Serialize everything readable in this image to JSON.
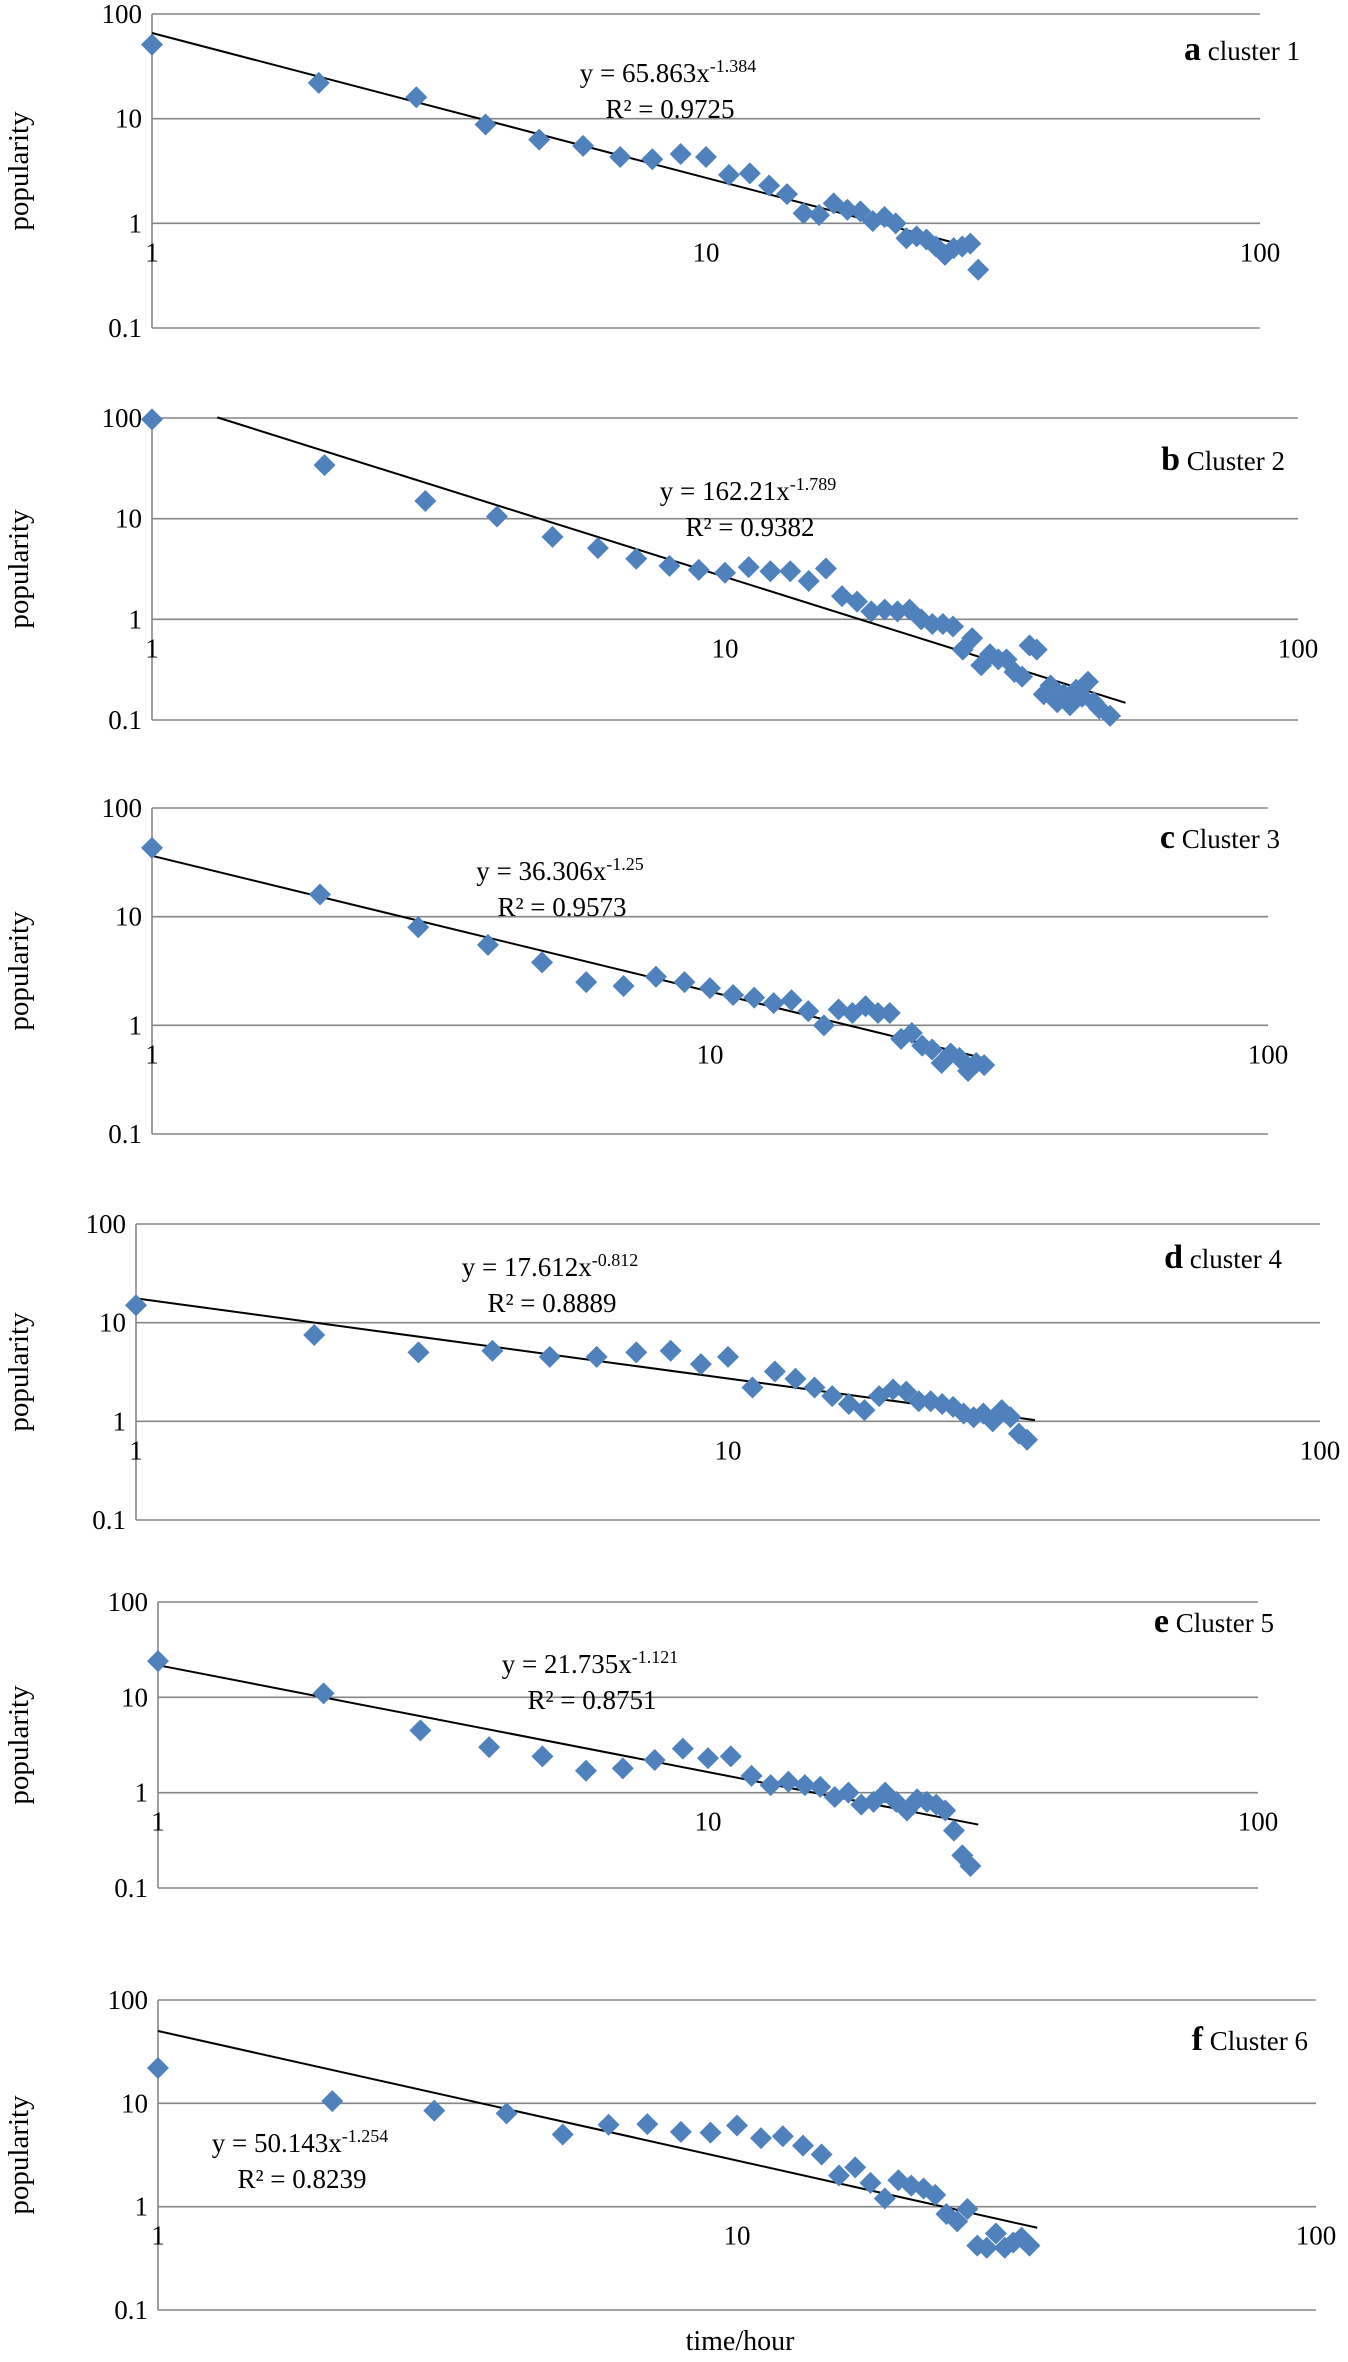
{
  "shared_x_label": "time/hour",
  "colors": {
    "marker": "#4f81bd",
    "gridline": "#868686",
    "trendline": "#000000",
    "axis": "#868686"
  },
  "chart_data": [
    {
      "type": "scatter",
      "panel_letter": "a",
      "panel_name": "cluster 1",
      "ylabel": "popularity",
      "x_scale": "log",
      "y_scale": "log",
      "xlim": [
        1,
        100
      ],
      "ylim": [
        0.1,
        100
      ],
      "x_ticks": [
        "1",
        "10",
        "100"
      ],
      "y_ticks": [
        "0.1",
        "1",
        "10",
        "100"
      ],
      "gridlines": "horizontal",
      "trendline": {
        "a": 65.863,
        "b": -1.384,
        "x_range": [
          1,
          30
        ]
      },
      "equation": {
        "prefix": "y = 65.863x",
        "exponent": "-1.384",
        "r2": "R² = 0.9725"
      },
      "points": [
        [
          1,
          51
        ],
        [
          2,
          22
        ],
        [
          3,
          16
        ],
        [
          4,
          8.8
        ],
        [
          5,
          6.3
        ],
        [
          6,
          5.5
        ],
        [
          7,
          4.3
        ],
        [
          8,
          4.1
        ],
        [
          9,
          4.6
        ],
        [
          10,
          4.3
        ],
        [
          11,
          2.9
        ],
        [
          12,
          3.0
        ],
        [
          13,
          2.3
        ],
        [
          14,
          1.9
        ],
        [
          15,
          1.25
        ],
        [
          16,
          1.2
        ],
        [
          17,
          1.55
        ],
        [
          18,
          1.35
        ],
        [
          19,
          1.3
        ],
        [
          20,
          1.05
        ],
        [
          21,
          1.15
        ],
        [
          22,
          1.0
        ],
        [
          23,
          0.72
        ],
        [
          24,
          0.75
        ],
        [
          25,
          0.7
        ],
        [
          26,
          0.6
        ],
        [
          27,
          0.5
        ],
        [
          28,
          0.58
        ],
        [
          29,
          0.6
        ],
        [
          30,
          0.64
        ],
        [
          31,
          0.36
        ]
      ]
    },
    {
      "type": "scatter",
      "panel_letter": "b",
      "panel_name": "Cluster 2",
      "ylabel": "popularity",
      "x_scale": "log",
      "y_scale": "log",
      "xlim": [
        1,
        100
      ],
      "ylim": [
        0.1,
        100
      ],
      "x_ticks": [
        "1",
        "10",
        "100"
      ],
      "y_ticks": [
        "0.1",
        "1",
        "10",
        "100"
      ],
      "gridlines": "horizontal",
      "trendline": {
        "a": 162.21,
        "b": -1.789,
        "x_range": [
          1.3,
          50
        ]
      },
      "equation": {
        "prefix": "y = 162.21x",
        "exponent": "-1.789",
        "r2": "R² = 0.9382"
      },
      "points": [
        [
          1,
          97
        ],
        [
          2,
          34
        ],
        [
          3,
          15
        ],
        [
          4,
          10.5
        ],
        [
          5,
          6.6
        ],
        [
          6,
          5.1
        ],
        [
          7,
          4.0
        ],
        [
          8,
          3.4
        ],
        [
          9,
          3.1
        ],
        [
          10,
          2.9
        ],
        [
          11,
          3.3
        ],
        [
          12,
          3.0
        ],
        [
          13,
          3.0
        ],
        [
          14,
          2.4
        ],
        [
          15,
          3.2
        ],
        [
          16,
          1.7
        ],
        [
          17,
          1.5
        ],
        [
          18,
          1.2
        ],
        [
          19,
          1.25
        ],
        [
          20,
          1.2
        ],
        [
          21,
          1.25
        ],
        [
          22,
          1.0
        ],
        [
          23,
          0.9
        ],
        [
          24,
          0.9
        ],
        [
          25,
          0.85
        ],
        [
          26,
          0.5
        ],
        [
          27,
          0.65
        ],
        [
          28,
          0.35
        ],
        [
          29,
          0.45
        ],
        [
          30,
          0.4
        ],
        [
          31,
          0.4
        ],
        [
          32,
          0.3
        ],
        [
          33,
          0.27
        ],
        [
          34,
          0.55
        ],
        [
          35,
          0.5
        ],
        [
          36,
          0.18
        ],
        [
          37,
          0.22
        ],
        [
          38,
          0.15
        ],
        [
          39,
          0.18
        ],
        [
          40,
          0.14
        ],
        [
          41,
          0.2
        ],
        [
          42,
          0.17
        ],
        [
          43,
          0.24
        ],
        [
          44,
          0.15
        ],
        [
          45,
          0.13
        ],
        [
          47,
          0.11
        ]
      ]
    },
    {
      "type": "scatter",
      "panel_letter": "c",
      "panel_name": "Cluster 3",
      "ylabel": "popularity",
      "x_scale": "log",
      "y_scale": "log",
      "xlim": [
        1,
        100
      ],
      "ylim": [
        0.1,
        100
      ],
      "x_ticks": [
        "1",
        "10",
        "100"
      ],
      "y_ticks": [
        "0.1",
        "1",
        "10",
        "100"
      ],
      "gridlines": "horizontal",
      "trendline": {
        "a": 36.306,
        "b": -1.25,
        "x_range": [
          1,
          31
        ]
      },
      "equation": {
        "prefix": "y = 36.306x",
        "exponent": "-1.25",
        "r2": "R² = 0.9573"
      },
      "points": [
        [
          1,
          43
        ],
        [
          2,
          16
        ],
        [
          3,
          8
        ],
        [
          4,
          5.5
        ],
        [
          5,
          3.8
        ],
        [
          6,
          2.5
        ],
        [
          7,
          2.3
        ],
        [
          8,
          2.8
        ],
        [
          9,
          2.5
        ],
        [
          10,
          2.2
        ],
        [
          11,
          1.9
        ],
        [
          12,
          1.8
        ],
        [
          13,
          1.6
        ],
        [
          14,
          1.7
        ],
        [
          15,
          1.35
        ],
        [
          16,
          1.0
        ],
        [
          17,
          1.4
        ],
        [
          18,
          1.3
        ],
        [
          19,
          1.5
        ],
        [
          20,
          1.3
        ],
        [
          21,
          1.3
        ],
        [
          22,
          0.75
        ],
        [
          23,
          0.85
        ],
        [
          24,
          0.65
        ],
        [
          25,
          0.6
        ],
        [
          26,
          0.45
        ],
        [
          27,
          0.55
        ],
        [
          28,
          0.5
        ],
        [
          29,
          0.38
        ],
        [
          30,
          0.45
        ],
        [
          31,
          0.43
        ]
      ]
    },
    {
      "type": "scatter",
      "panel_letter": "d",
      "panel_name": "cluster 4",
      "ylabel": "popularity",
      "x_scale": "log",
      "y_scale": "log",
      "xlim": [
        1,
        100
      ],
      "ylim": [
        0.1,
        100
      ],
      "x_ticks": [
        "1",
        "10",
        "100"
      ],
      "y_ticks": [
        "0.1",
        "1",
        "10",
        "100"
      ],
      "gridlines": "horizontal",
      "trendline": {
        "a": 17.612,
        "b": -0.812,
        "x_range": [
          1,
          33
        ]
      },
      "equation": {
        "prefix": "y = 17.612x",
        "exponent": "-0.812",
        "r2": "R² = 0.8889"
      },
      "points": [
        [
          1,
          15
        ],
        [
          2,
          7.5
        ],
        [
          3,
          5
        ],
        [
          4,
          5.2
        ],
        [
          5,
          4.5
        ],
        [
          6,
          4.5
        ],
        [
          7,
          5
        ],
        [
          8,
          5.2
        ],
        [
          9,
          3.8
        ],
        [
          10,
          4.5
        ],
        [
          11,
          2.2
        ],
        [
          12,
          3.2
        ],
        [
          13,
          2.7
        ],
        [
          14,
          2.2
        ],
        [
          15,
          1.8
        ],
        [
          16,
          1.5
        ],
        [
          17,
          1.3
        ],
        [
          18,
          1.8
        ],
        [
          19,
          2.1
        ],
        [
          20,
          2.0
        ],
        [
          21,
          1.6
        ],
        [
          22,
          1.6
        ],
        [
          23,
          1.5
        ],
        [
          24,
          1.4
        ],
        [
          25,
          1.2
        ],
        [
          26,
          1.1
        ],
        [
          27,
          1.2
        ],
        [
          28,
          1.0
        ],
        [
          29,
          1.3
        ],
        [
          30,
          1.1
        ],
        [
          31,
          0.75
        ],
        [
          32,
          0.65
        ]
      ]
    },
    {
      "type": "scatter",
      "panel_letter": "e",
      "panel_name": "Cluster 5",
      "ylabel": "popularity",
      "x_scale": "log",
      "y_scale": "log",
      "xlim": [
        1,
        100
      ],
      "ylim": [
        0.1,
        100
      ],
      "x_ticks": [
        "1",
        "10",
        "100"
      ],
      "y_ticks": [
        "0.1",
        "1",
        "10",
        "100"
      ],
      "gridlines": "horizontal",
      "trendline": {
        "a": 21.735,
        "b": -1.121,
        "x_range": [
          1,
          31
        ]
      },
      "equation": {
        "prefix": "y = 21.735x",
        "exponent": "-1.121",
        "r2": "R² = 0.8751"
      },
      "points": [
        [
          1,
          24
        ],
        [
          2,
          11
        ],
        [
          3,
          4.5
        ],
        [
          4,
          3.0
        ],
        [
          5,
          2.4
        ],
        [
          6,
          1.7
        ],
        [
          7,
          1.8
        ],
        [
          8,
          2.2
        ],
        [
          9,
          2.9
        ],
        [
          10,
          2.3
        ],
        [
          11,
          2.4
        ],
        [
          12,
          1.5
        ],
        [
          13,
          1.2
        ],
        [
          14,
          1.3
        ],
        [
          15,
          1.2
        ],
        [
          16,
          1.15
        ],
        [
          17,
          0.9
        ],
        [
          18,
          1.0
        ],
        [
          19,
          0.75
        ],
        [
          20,
          0.8
        ],
        [
          21,
          1.0
        ],
        [
          22,
          0.8
        ],
        [
          23,
          0.65
        ],
        [
          24,
          0.85
        ],
        [
          25,
          0.8
        ],
        [
          26,
          0.75
        ],
        [
          27,
          0.65
        ],
        [
          28,
          0.4
        ],
        [
          29,
          0.22
        ],
        [
          30,
          0.17
        ]
      ]
    },
    {
      "type": "scatter",
      "panel_letter": "f",
      "panel_name": "Cluster 6",
      "ylabel": "popularity",
      "xlabel": "time/hour",
      "x_scale": "log",
      "y_scale": "log",
      "xlim": [
        1,
        100
      ],
      "ylim": [
        0.1,
        100
      ],
      "x_ticks": [
        "1",
        "10",
        "100"
      ],
      "y_ticks": [
        "0.1",
        "1",
        "10",
        "100"
      ],
      "gridlines": "horizontal",
      "trendline": {
        "a": 50.143,
        "b": -1.254,
        "x_range": [
          1,
          33
        ]
      },
      "equation": {
        "prefix": "y = 50.143x",
        "exponent": "-1.254",
        "r2": "R² = 0.8239"
      },
      "points": [
        [
          1,
          22
        ],
        [
          2,
          10.5
        ],
        [
          3,
          8.5
        ],
        [
          4,
          8
        ],
        [
          5,
          5
        ],
        [
          6,
          6.2
        ],
        [
          7,
          6.3
        ],
        [
          8,
          5.3
        ],
        [
          9,
          5.2
        ],
        [
          10,
          6.1
        ],
        [
          11,
          4.6
        ],
        [
          12,
          4.8
        ],
        [
          13,
          3.9
        ],
        [
          14,
          3.2
        ],
        [
          15,
          2.0
        ],
        [
          16,
          2.4
        ],
        [
          17,
          1.7
        ],
        [
          18,
          1.2
        ],
        [
          19,
          1.8
        ],
        [
          20,
          1.6
        ],
        [
          21,
          1.5
        ],
        [
          22,
          1.3
        ],
        [
          23,
          0.85
        ],
        [
          24,
          0.72
        ],
        [
          25,
          0.95
        ],
        [
          26,
          0.42
        ],
        [
          27,
          0.4
        ],
        [
          28,
          0.55
        ],
        [
          29,
          0.4
        ],
        [
          30,
          0.45
        ],
        [
          31,
          0.5
        ],
        [
          32,
          0.42
        ]
      ]
    }
  ]
}
